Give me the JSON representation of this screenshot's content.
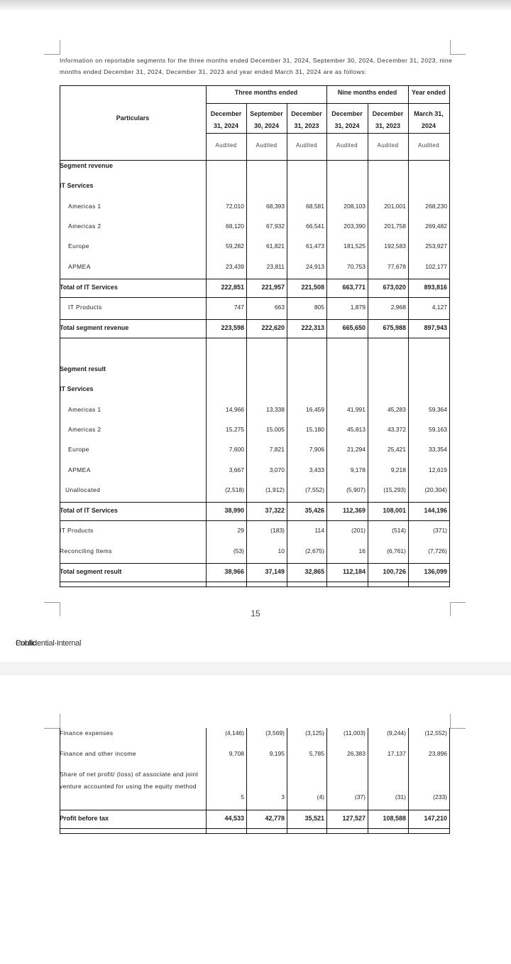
{
  "intro": "Information on reportable segments for the three months ended December 31, 2024, September 30, 2024, December 31, 2023, nine months ended December 31, 2024, December 31, 2023 and year ended March 31, 2024 are as follows:",
  "table1": {
    "particulars": "Particulars",
    "groups": [
      "Three months ended",
      "Nine months ended",
      "Year ended"
    ],
    "columns": [
      "December 31, 2024",
      "September 30, 2024",
      "December 31, 2023",
      "December 31, 2024",
      "December 31, 2023",
      "March 31, 2024"
    ],
    "status": [
      "Audited",
      "Audited",
      "Audited",
      "Audited",
      "Audited",
      "Audited"
    ],
    "rows": [
      {
        "label": "Segment revenue"
      },
      {
        "label": "IT Services"
      },
      {
        "label": "Americas 1",
        "values": [
          "72,010",
          "68,393",
          "68,581",
          "208,103",
          "201,001",
          "268,230"
        ]
      },
      {
        "label": "Americas 2",
        "values": [
          "68,120",
          "67,932",
          "66,541",
          "203,390",
          "201,758",
          "269,482"
        ]
      },
      {
        "label": "Europe",
        "values": [
          "59,282",
          "61,821",
          "61,473",
          "181,525",
          "192,583",
          "253,927"
        ]
      },
      {
        "label": "APMEA",
        "values": [
          "23,439",
          "23,811",
          "24,913",
          "70,753",
          "77,678",
          "102,177"
        ]
      },
      {
        "label": "Total of IT Services",
        "values": [
          "222,851",
          "221,957",
          "221,508",
          "663,771",
          "673,020",
          "893,816"
        ]
      },
      {
        "label": "IT Products",
        "values": [
          "747",
          "663",
          "805",
          "1,879",
          "2,968",
          "4,127"
        ]
      },
      {
        "label": "Total segment revenue",
        "values": [
          "223,598",
          "222,620",
          "222,313",
          "665,650",
          "675,988",
          "897,943"
        ]
      },
      {
        "label": "Segment result"
      },
      {
        "label": "IT Services"
      },
      {
        "label": "Americas 1",
        "values": [
          "14,966",
          "13,338",
          "16,459",
          "41,991",
          "45,283",
          "59,364"
        ]
      },
      {
        "label": "Americas 2",
        "values": [
          "15,275",
          "15,005",
          "15,180",
          "45,813",
          "43,372",
          "59,163"
        ]
      },
      {
        "label": "Europe",
        "values": [
          "7,600",
          "7,821",
          "7,906",
          "21,294",
          "25,421",
          "33,354"
        ]
      },
      {
        "label": "APMEA",
        "values": [
          "3,667",
          "3,070",
          "3,433",
          "9,178",
          "9,218",
          "12,619"
        ]
      },
      {
        "label": "Unallocated",
        "values": [
          "(2,518)",
          "(1,912)",
          "(7,552)",
          "(5,907)",
          "(15,293)",
          "(20,304)"
        ]
      },
      {
        "label": "Total of IT Services",
        "values": [
          "38,990",
          "37,322",
          "35,426",
          "112,369",
          "108,001",
          "144,196"
        ]
      },
      {
        "label": "IT Products",
        "values": [
          "29",
          "(183)",
          "114",
          "(201)",
          "(514)",
          "(371)"
        ]
      },
      {
        "label": "Reconciling Items",
        "values": [
          "(53)",
          "10",
          "(2,675)",
          "16",
          "(6,761)",
          "(7,726)"
        ]
      },
      {
        "label": "Total segment result",
        "values": [
          "38,966",
          "37,149",
          "32,865",
          "112,184",
          "100,726",
          "136,099"
        ]
      }
    ]
  },
  "page_number": "15",
  "footer": {
    "classification_1": "Public",
    "classification_2": "Confidential-Internal"
  },
  "table2": {
    "rows": [
      {
        "label": "Finance expenses",
        "values": [
          "(4,146)",
          "(3,569)",
          "(3,125)",
          "(11,003)",
          "(9,244)",
          "(12,552)"
        ]
      },
      {
        "label": "Finance and other income",
        "values": [
          "9,708",
          "9,195",
          "5,785",
          "26,383",
          "17,137",
          "23,896"
        ]
      },
      {
        "label": "Share of net profit/ (loss) of associate and joint venture accounted for using the equity method",
        "values": [
          "5",
          "3",
          "(4)",
          "(37)",
          "(31)",
          "(233)"
        ]
      },
      {
        "label": "Profit before tax",
        "values": [
          "44,533",
          "42,778",
          "35,521",
          "127,527",
          "108,588",
          "147,210"
        ]
      }
    ]
  }
}
